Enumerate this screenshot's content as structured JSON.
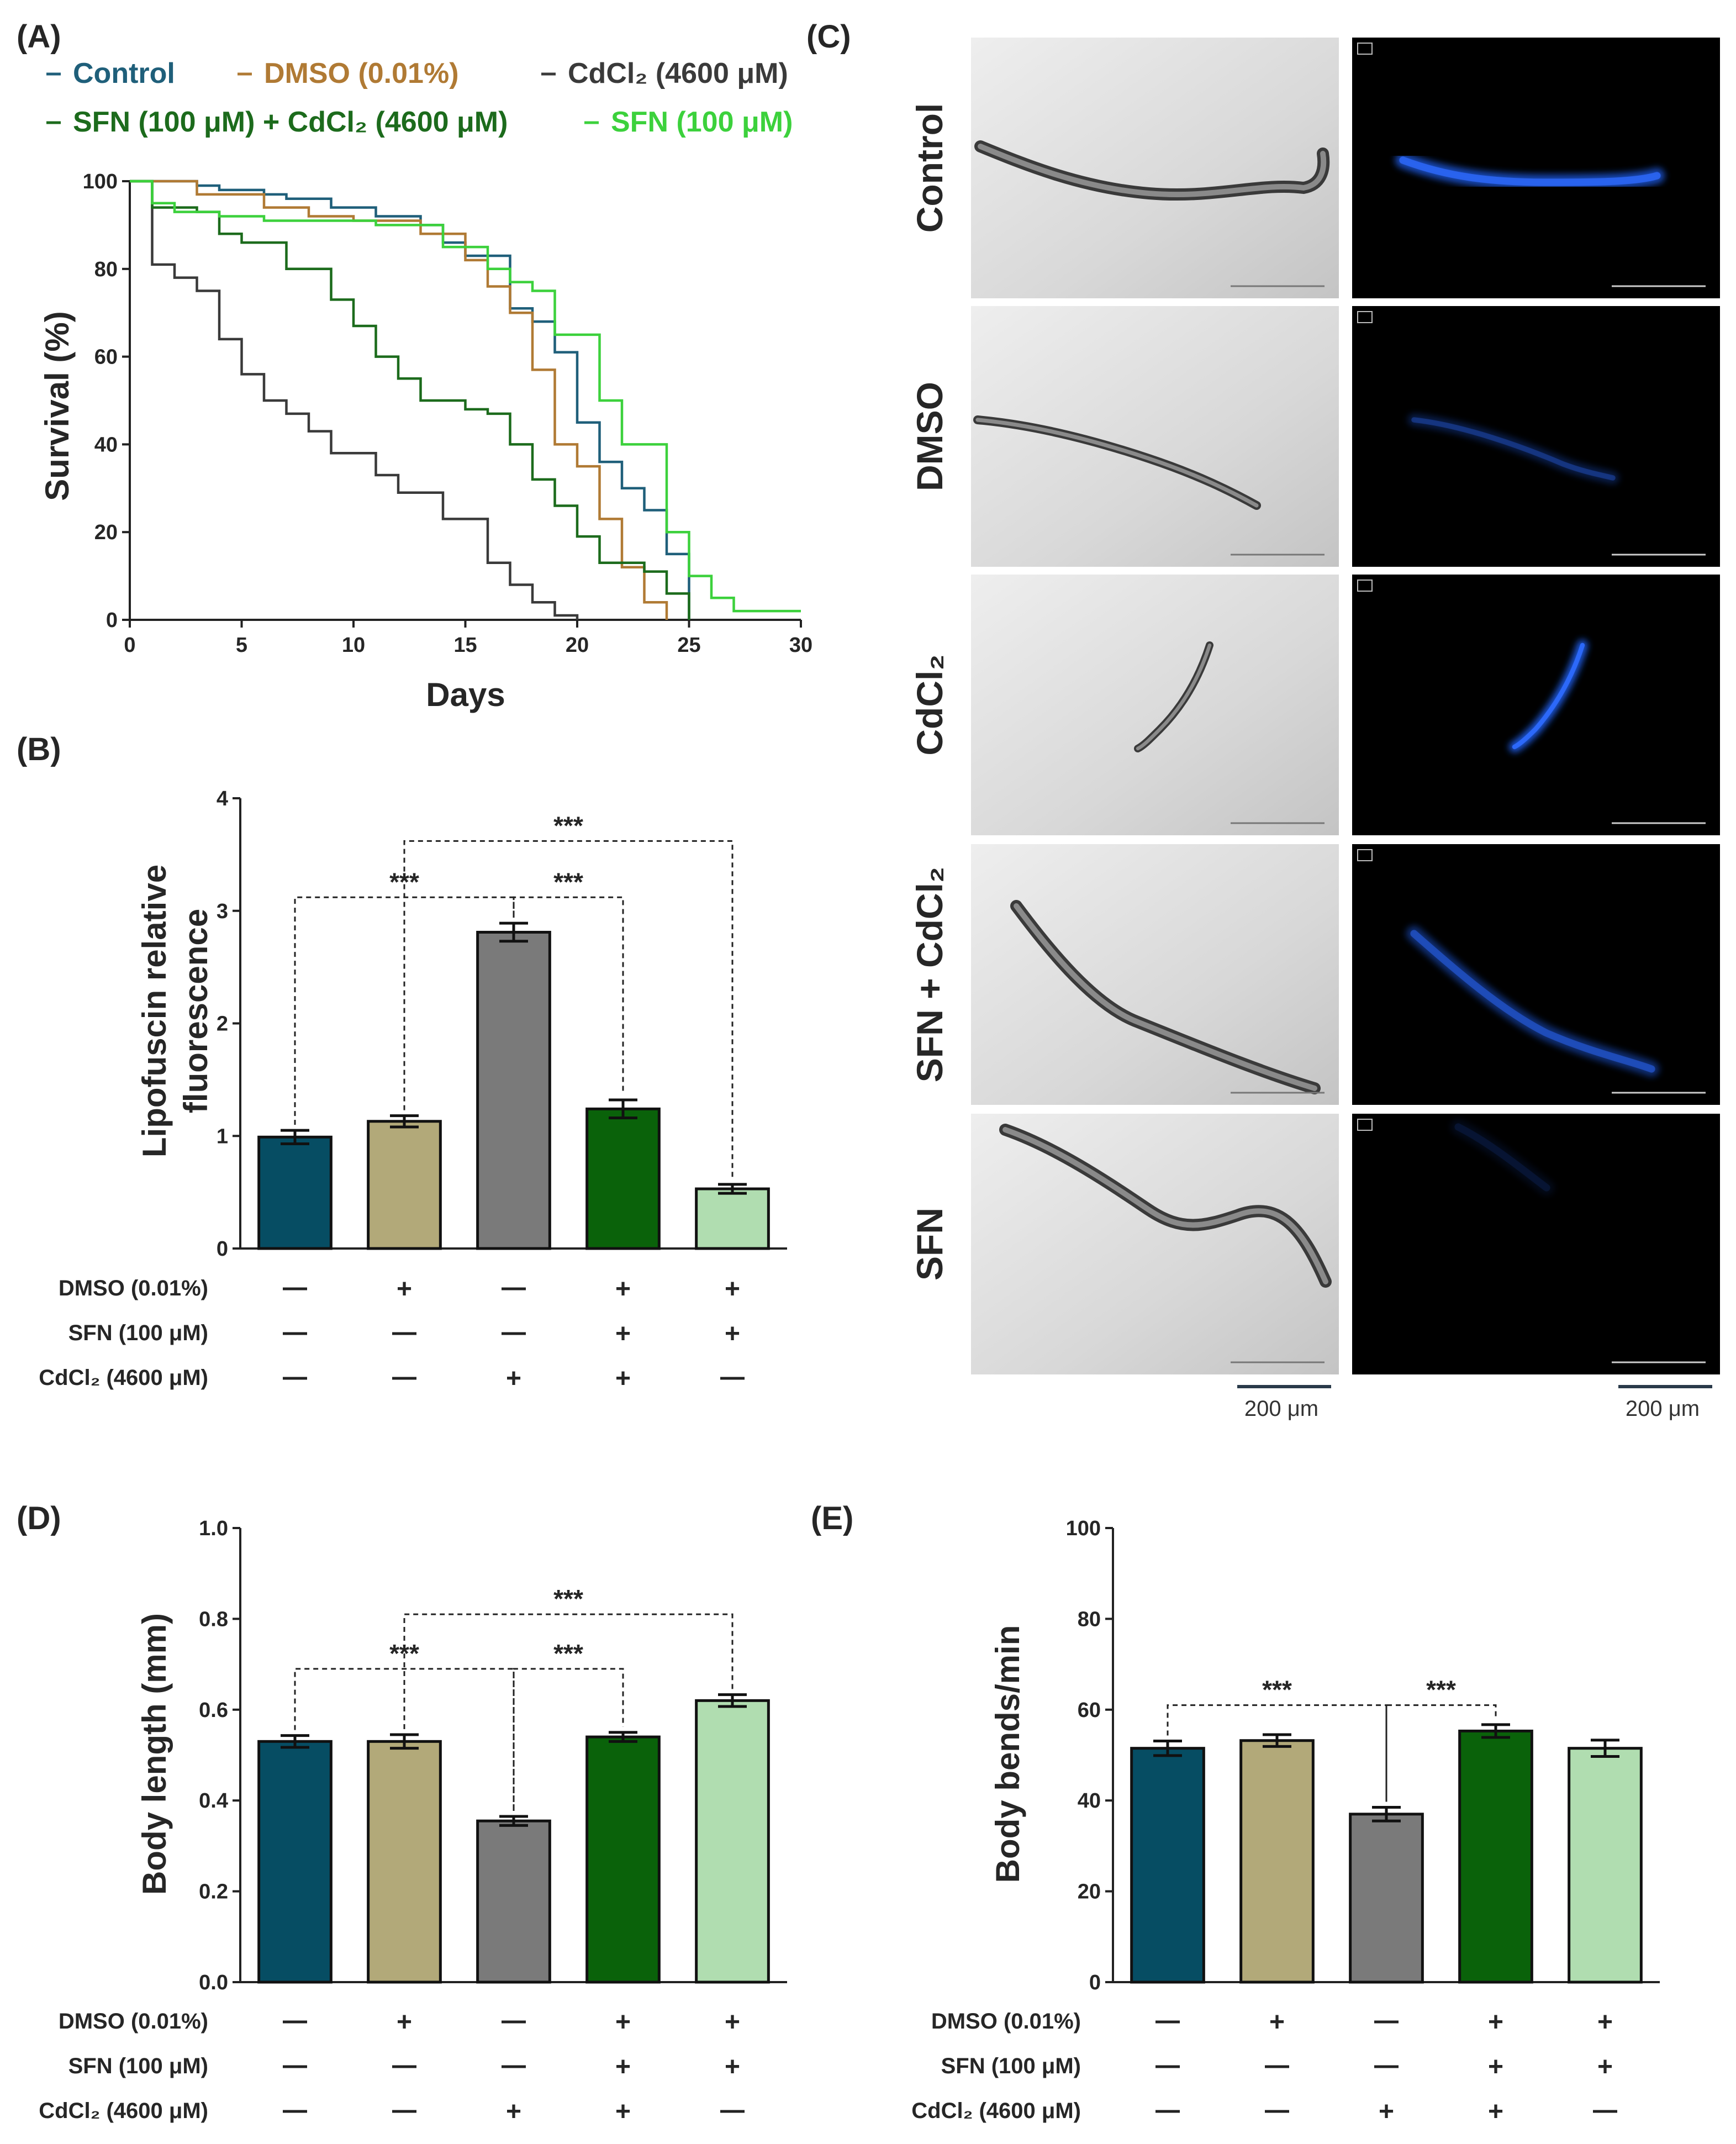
{
  "panels": {
    "a": "(A)",
    "b": "(B)",
    "c": "(C)",
    "d": "(D)",
    "e": "(E)"
  },
  "chart_data": [
    {
      "panel": "A",
      "type": "line",
      "step": true,
      "xlabel": "Days",
      "ylabel": "Survival (%)",
      "xlim": [
        0,
        30
      ],
      "ylim": [
        0,
        100
      ],
      "xticks": [
        0,
        5,
        10,
        15,
        20,
        25,
        30
      ],
      "yticks": [
        0,
        20,
        40,
        60,
        80,
        100
      ],
      "legend": [
        {
          "text": "Control",
          "color": "#1f5f7a"
        },
        {
          "text": "DMSO (0.01%)",
          "color": "#b07a34"
        },
        {
          "text": "CdCl₂ (4600 μM)",
          "color": "#3a3a3a"
        },
        {
          "text": "SFN (100 μM) + CdCl₂ (4600 μM)",
          "color": "#1c6b1c"
        },
        {
          "text": "SFN (100 μM)",
          "color": "#3cd13c"
        }
      ],
      "series": [
        {
          "name": "Control",
          "color": "#1f5f7a",
          "x": [
            0,
            3,
            4,
            6,
            7,
            9,
            11,
            13,
            14,
            15,
            17,
            18,
            19,
            20,
            21,
            22,
            23,
            24,
            25
          ],
          "y": [
            100,
            99,
            98,
            97,
            96,
            94,
            92,
            90,
            86,
            83,
            71,
            68,
            61,
            45,
            36,
            30,
            25,
            15,
            0
          ]
        },
        {
          "name": "DMSO (0.01%)",
          "color": "#b07a34",
          "x": [
            0,
            3,
            6,
            8,
            10,
            12,
            13,
            15,
            16,
            17,
            18,
            19,
            20,
            21,
            22,
            23,
            24
          ],
          "y": [
            100,
            97,
            94,
            92,
            91,
            91,
            88,
            82,
            76,
            70,
            57,
            40,
            35,
            23,
            12,
            4,
            0
          ]
        },
        {
          "name": "CdCl₂ (4600 μM)",
          "color": "#3a3a3a",
          "x": [
            0,
            1,
            2,
            3,
            4,
            5,
            6,
            7,
            8,
            9,
            11,
            12,
            14,
            16,
            17,
            18,
            19,
            20
          ],
          "y": [
            100,
            81,
            78,
            75,
            64,
            56,
            50,
            47,
            43,
            38,
            33,
            29,
            23,
            13,
            8,
            4,
            1,
            0
          ]
        },
        {
          "name": "SFN (100 μM) + CdCl₂ (4600 μM)",
          "color": "#1c6b1c",
          "x": [
            0,
            1,
            3,
            4,
            5,
            7,
            9,
            10,
            11,
            12,
            13,
            15,
            16,
            17,
            18,
            19,
            20,
            21,
            23,
            24,
            25
          ],
          "y": [
            100,
            94,
            93,
            88,
            86,
            80,
            73,
            67,
            60,
            55,
            50,
            48,
            47,
            40,
            32,
            26,
            19,
            13,
            11,
            6,
            0
          ]
        },
        {
          "name": "SFN (100 μM)",
          "color": "#3cd13c",
          "x": [
            0,
            1,
            2,
            4,
            6,
            8,
            11,
            14,
            16,
            17,
            18,
            19,
            21,
            22,
            24,
            25,
            26,
            27,
            30
          ],
          "y": [
            100,
            95,
            93,
            92,
            91,
            91,
            90,
            85,
            80,
            77,
            75,
            65,
            50,
            40,
            20,
            10,
            5,
            2,
            2
          ]
        }
      ]
    },
    {
      "panel": "B",
      "type": "bar",
      "ylabel_line1": "Lipofuscin relative",
      "ylabel_line2": "fluorescence",
      "ylim": [
        0,
        4
      ],
      "yticks": [
        0,
        1,
        2,
        3,
        4
      ],
      "categories": [
        "Control",
        "DMSO",
        "CdCl₂",
        "SFN + CdCl₂",
        "SFN"
      ],
      "colors": [
        "#064d63",
        "#b2a979",
        "#7a7a7a",
        "#0a620a",
        "#b0ddb0"
      ],
      "values": [
        0.99,
        1.13,
        2.81,
        1.24,
        0.53
      ],
      "errors": [
        0.06,
        0.05,
        0.08,
        0.08,
        0.04
      ],
      "brackets": [
        {
          "from": 0,
          "to": 2,
          "label": "***",
          "level": 3.12
        },
        {
          "from": 2,
          "to": 3,
          "label": "***",
          "level": 3.12
        },
        {
          "from": 1,
          "to": 4,
          "label": "***",
          "level": 3.62
        }
      ],
      "table": [
        {
          "label": "DMSO (0.01%)",
          "marks": [
            "—",
            "+",
            "—",
            "+",
            "+"
          ]
        },
        {
          "label": "SFN (100 μM)",
          "marks": [
            "—",
            "—",
            "—",
            "+",
            "+"
          ]
        },
        {
          "label": "CdCl₂ (4600 μM)",
          "marks": [
            "—",
            "—",
            "+",
            "+",
            "—"
          ]
        }
      ]
    },
    {
      "panel": "D",
      "type": "bar",
      "ylabel": "Body length (mm)",
      "ylim": [
        0,
        1.0
      ],
      "yticks": [
        "0.0",
        "0.2",
        "0.4",
        "0.6",
        "0.8",
        "1.0"
      ],
      "categories": [
        "Control",
        "DMSO",
        "CdCl₂",
        "SFN + CdCl₂",
        "SFN"
      ],
      "colors": [
        "#064d63",
        "#b2a979",
        "#7a7a7a",
        "#0a620a",
        "#b0ddb0"
      ],
      "values": [
        0.53,
        0.53,
        0.355,
        0.54,
        0.62
      ],
      "errors": [
        0.013,
        0.015,
        0.01,
        0.01,
        0.013
      ],
      "brackets": [
        {
          "from": 0,
          "to": 2,
          "label": "***",
          "level": 0.69
        },
        {
          "from": 2,
          "to": 3,
          "label": "***",
          "level": 0.69
        },
        {
          "from": 1,
          "to": 4,
          "label": "***",
          "level": 0.81
        }
      ],
      "table": [
        {
          "label": "DMSO (0.01%)",
          "marks": [
            "—",
            "+",
            "—",
            "+",
            "+"
          ]
        },
        {
          "label": "SFN (100 μM)",
          "marks": [
            "—",
            "—",
            "—",
            "+",
            "+"
          ]
        },
        {
          "label": "CdCl₂ (4600 μM)",
          "marks": [
            "—",
            "—",
            "+",
            "+",
            "—"
          ]
        }
      ]
    },
    {
      "panel": "E",
      "type": "bar",
      "ylabel": "Body bends/min",
      "ylim": [
        0,
        100
      ],
      "yticks": [
        0,
        20,
        40,
        60,
        80,
        100
      ],
      "categories": [
        "Control",
        "DMSO",
        "CdCl₂",
        "SFN + CdCl₂",
        "SFN"
      ],
      "colors": [
        "#064d63",
        "#b2a979",
        "#7a7a7a",
        "#0a620a",
        "#b0ddb0"
      ],
      "values": [
        51.5,
        53.2,
        37.0,
        55.3,
        51.5
      ],
      "errors": [
        1.6,
        1.3,
        1.5,
        1.4,
        1.8
      ],
      "brackets": [
        {
          "from": 0,
          "to": 2,
          "label": "***",
          "level": 61
        },
        {
          "from": 2,
          "to": 3,
          "label": "***",
          "level": 61
        }
      ],
      "table": [
        {
          "label": "DMSO (0.01%)",
          "marks": [
            "—",
            "+",
            "—",
            "+",
            "+"
          ]
        },
        {
          "label": "SFN (100 μM)",
          "marks": [
            "—",
            "—",
            "—",
            "+",
            "+"
          ]
        },
        {
          "label": "CdCl₂ (4600 μM)",
          "marks": [
            "—",
            "—",
            "+",
            "+",
            "—"
          ]
        }
      ]
    }
  ],
  "micrographs": {
    "rows": [
      "Control",
      "DMSO",
      "CdCl₂",
      "SFN + CdCl₂",
      "SFN"
    ],
    "scale_bar_left": "200 μm",
    "scale_bar_right": "200 μm"
  }
}
